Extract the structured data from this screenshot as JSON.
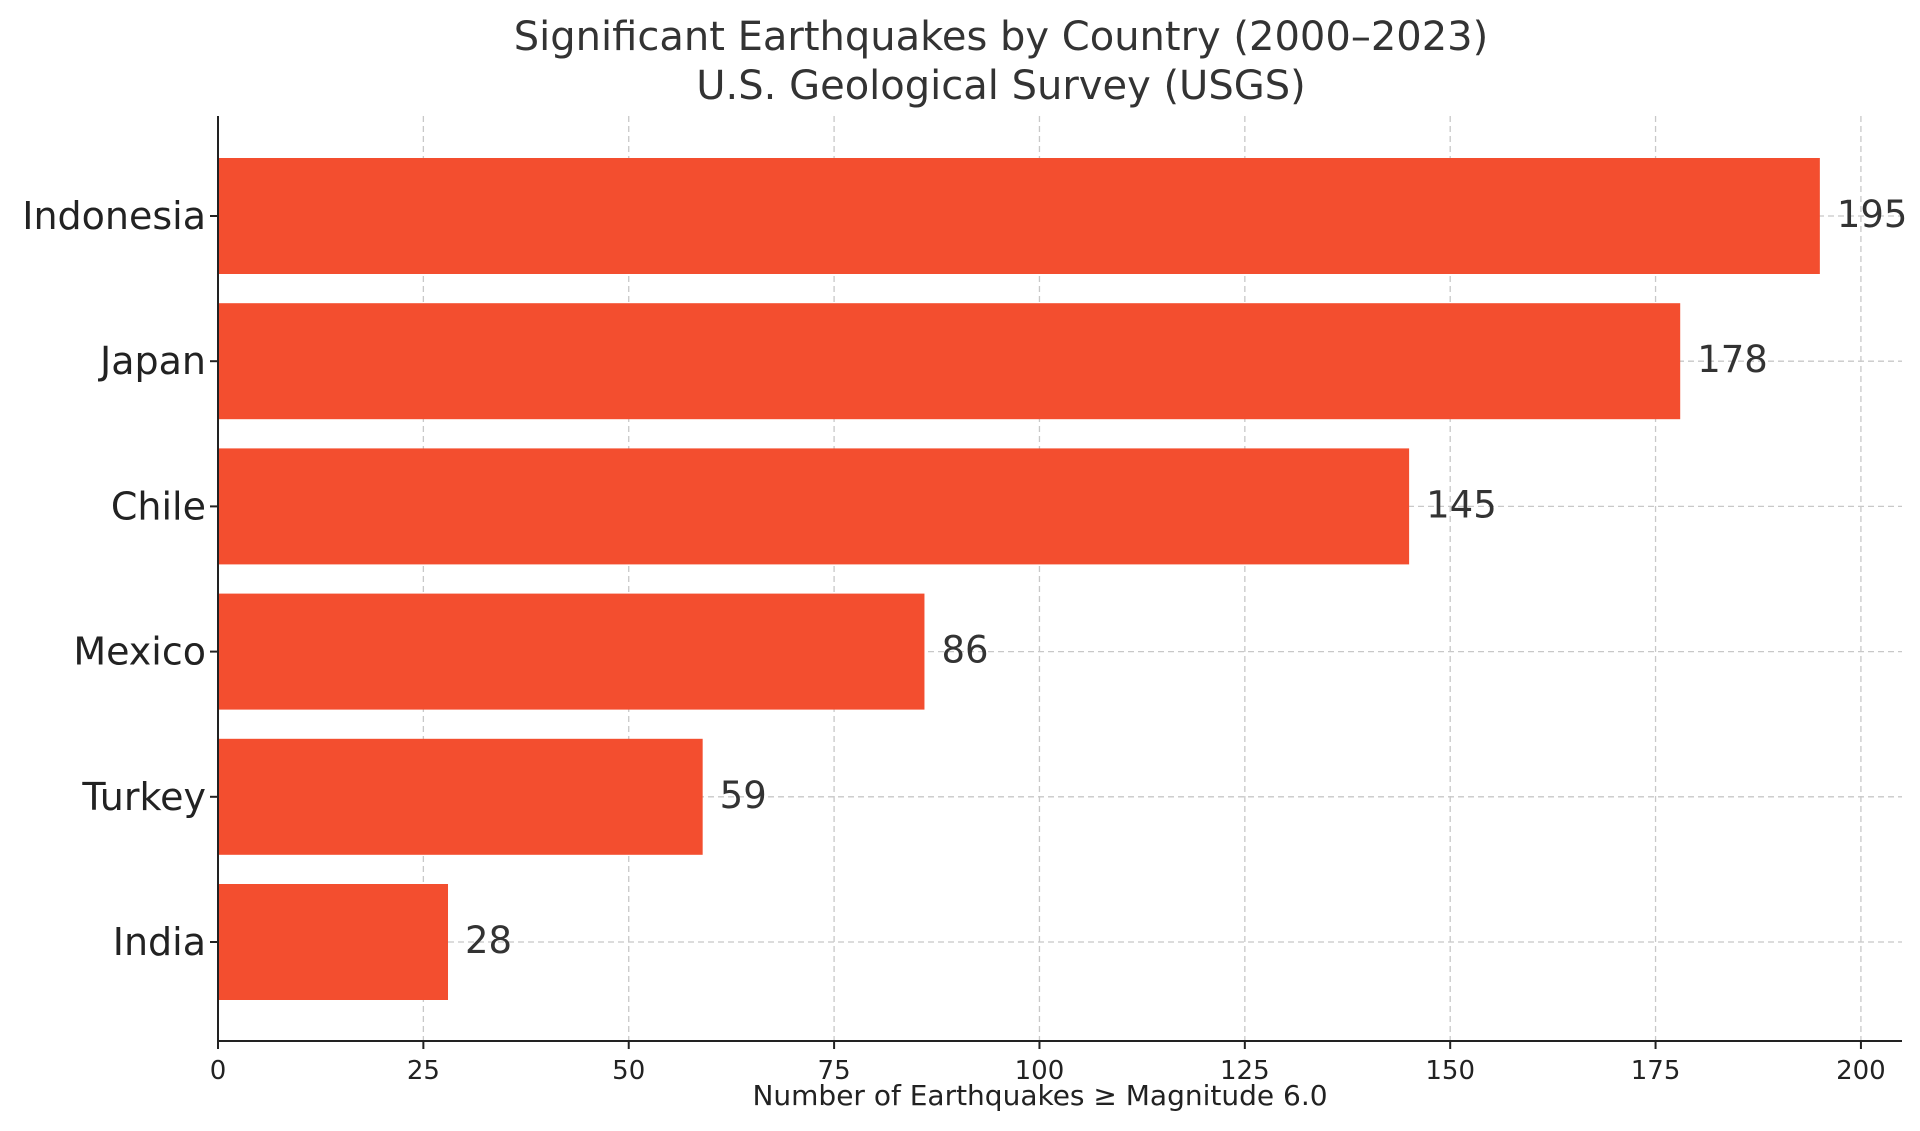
{
  "chart_data": {
    "type": "bar",
    "orientation": "horizontal",
    "title": "Significant Earthquakes by Country (2000–2023)",
    "subtitle": "U.S. Geological Survey (USGS)",
    "xlabel": "Number of Earthquakes ≥ Magnitude 6.0",
    "ylabel": "",
    "categories": [
      "Indonesia",
      "Japan",
      "Chile",
      "Mexico",
      "Turkey",
      "India"
    ],
    "values": [
      195,
      178,
      145,
      86,
      59,
      28
    ],
    "xlim": [
      0,
      205
    ],
    "xticks": [
      0,
      25,
      50,
      75,
      100,
      125,
      150,
      175,
      200
    ],
    "bar_color": "#f34e2f",
    "grid": true,
    "data_labels": true
  }
}
